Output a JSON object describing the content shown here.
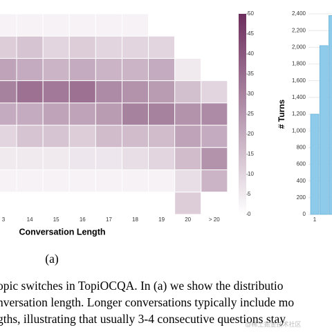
{
  "chart_data": [
    {
      "type": "heatmap",
      "x_label": "Conversation Length",
      "categories": [
        "3",
        "14",
        "15",
        "16",
        "17",
        "18",
        "19",
        "20",
        "> 20"
      ],
      "values": [
        [
          3,
          3,
          3,
          3,
          3,
          3,
          0,
          0,
          0
        ],
        [
          12,
          14,
          10,
          12,
          10,
          10,
          10,
          0,
          0
        ],
        [
          22,
          20,
          18,
          20,
          18,
          18,
          20,
          5,
          0
        ],
        [
          30,
          34,
          32,
          34,
          28,
          26,
          24,
          15,
          10
        ],
        [
          20,
          20,
          22,
          22,
          24,
          30,
          30,
          26,
          28
        ],
        [
          10,
          14,
          14,
          12,
          16,
          16,
          16,
          22,
          20
        ],
        [
          5,
          5,
          5,
          6,
          6,
          8,
          10,
          16,
          26
        ],
        [
          3,
          3,
          3,
          3,
          3,
          3,
          3,
          8,
          18
        ],
        [
          0,
          0,
          0,
          0,
          0,
          0,
          0,
          12,
          0
        ]
      ],
      "color": "#6d2e5e",
      "zlim": [
        0,
        50
      ],
      "zticks": [
        0,
        5,
        10,
        15,
        20,
        25,
        30,
        35,
        40,
        45,
        50
      ]
    },
    {
      "type": "bar",
      "y_label": "# Turns",
      "categories": [
        "1",
        null,
        null
      ],
      "values": [
        1200,
        2020,
        2380
      ],
      "color": "#8ecae9",
      "ylim": [
        0,
        2400
      ],
      "yticks": [
        0,
        200,
        400,
        600,
        800,
        {
          "value": 1000,
          "label": "1,000"
        },
        {
          "value": 1200,
          "label": "1,200"
        },
        {
          "value": 1400,
          "label": "1,400"
        },
        {
          "value": 1600,
          "label": "1,600"
        },
        {
          "value": 1800,
          "label": "1,800"
        },
        {
          "value": 2000,
          "label": "2,000"
        },
        {
          "value": 2200,
          "label": "2,200"
        },
        {
          "value": 2400,
          "label": "2,400"
        }
      ],
      "grid": true
    }
  ],
  "subfigure_label": "(a)",
  "caption_lines": [
    "opic switches in TopiOCQA. In (a) we show the distributio",
    "nversation length. Longer conversations typically include mo",
    "gths, illustrating that usually 3-4 consecutive questions stay"
  ],
  "watermark": "@稀土掘金技术社区"
}
